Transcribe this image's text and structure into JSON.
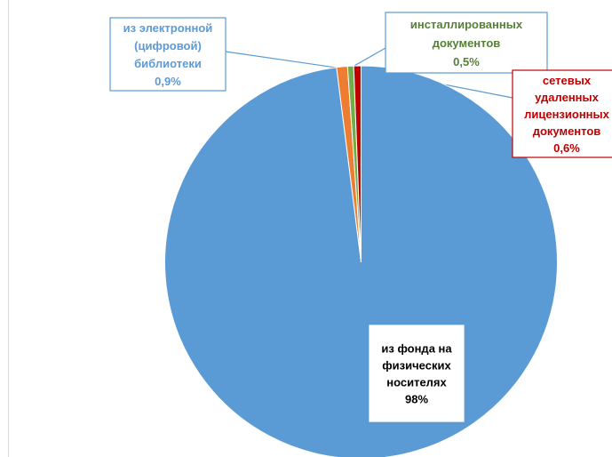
{
  "chart_data": {
    "type": "pie",
    "start_angle_deg": 0,
    "direction": "clockwise",
    "series": [
      {
        "values": [
          98,
          0.9,
          0.5,
          0.6
        ],
        "labels": [
          [
            "из фонда на",
            "физических",
            "носителях",
            "98%"
          ],
          [
            "из электронной",
            "(цифровой)",
            "библиотеки",
            "0,9%"
          ],
          [
            "инсталлированных",
            "документов",
            "0,5%"
          ],
          [
            "сетевых",
            "удаленных",
            "лицензионных",
            "документов",
            "0,6%"
          ]
        ],
        "colors": [
          "#5b9bd5",
          "#ed7d31",
          "#70ad47",
          "#c00000"
        ],
        "label_colors": [
          "#000000",
          "#5b9bd5",
          "#548235",
          "#c00000"
        ]
      }
    ]
  }
}
